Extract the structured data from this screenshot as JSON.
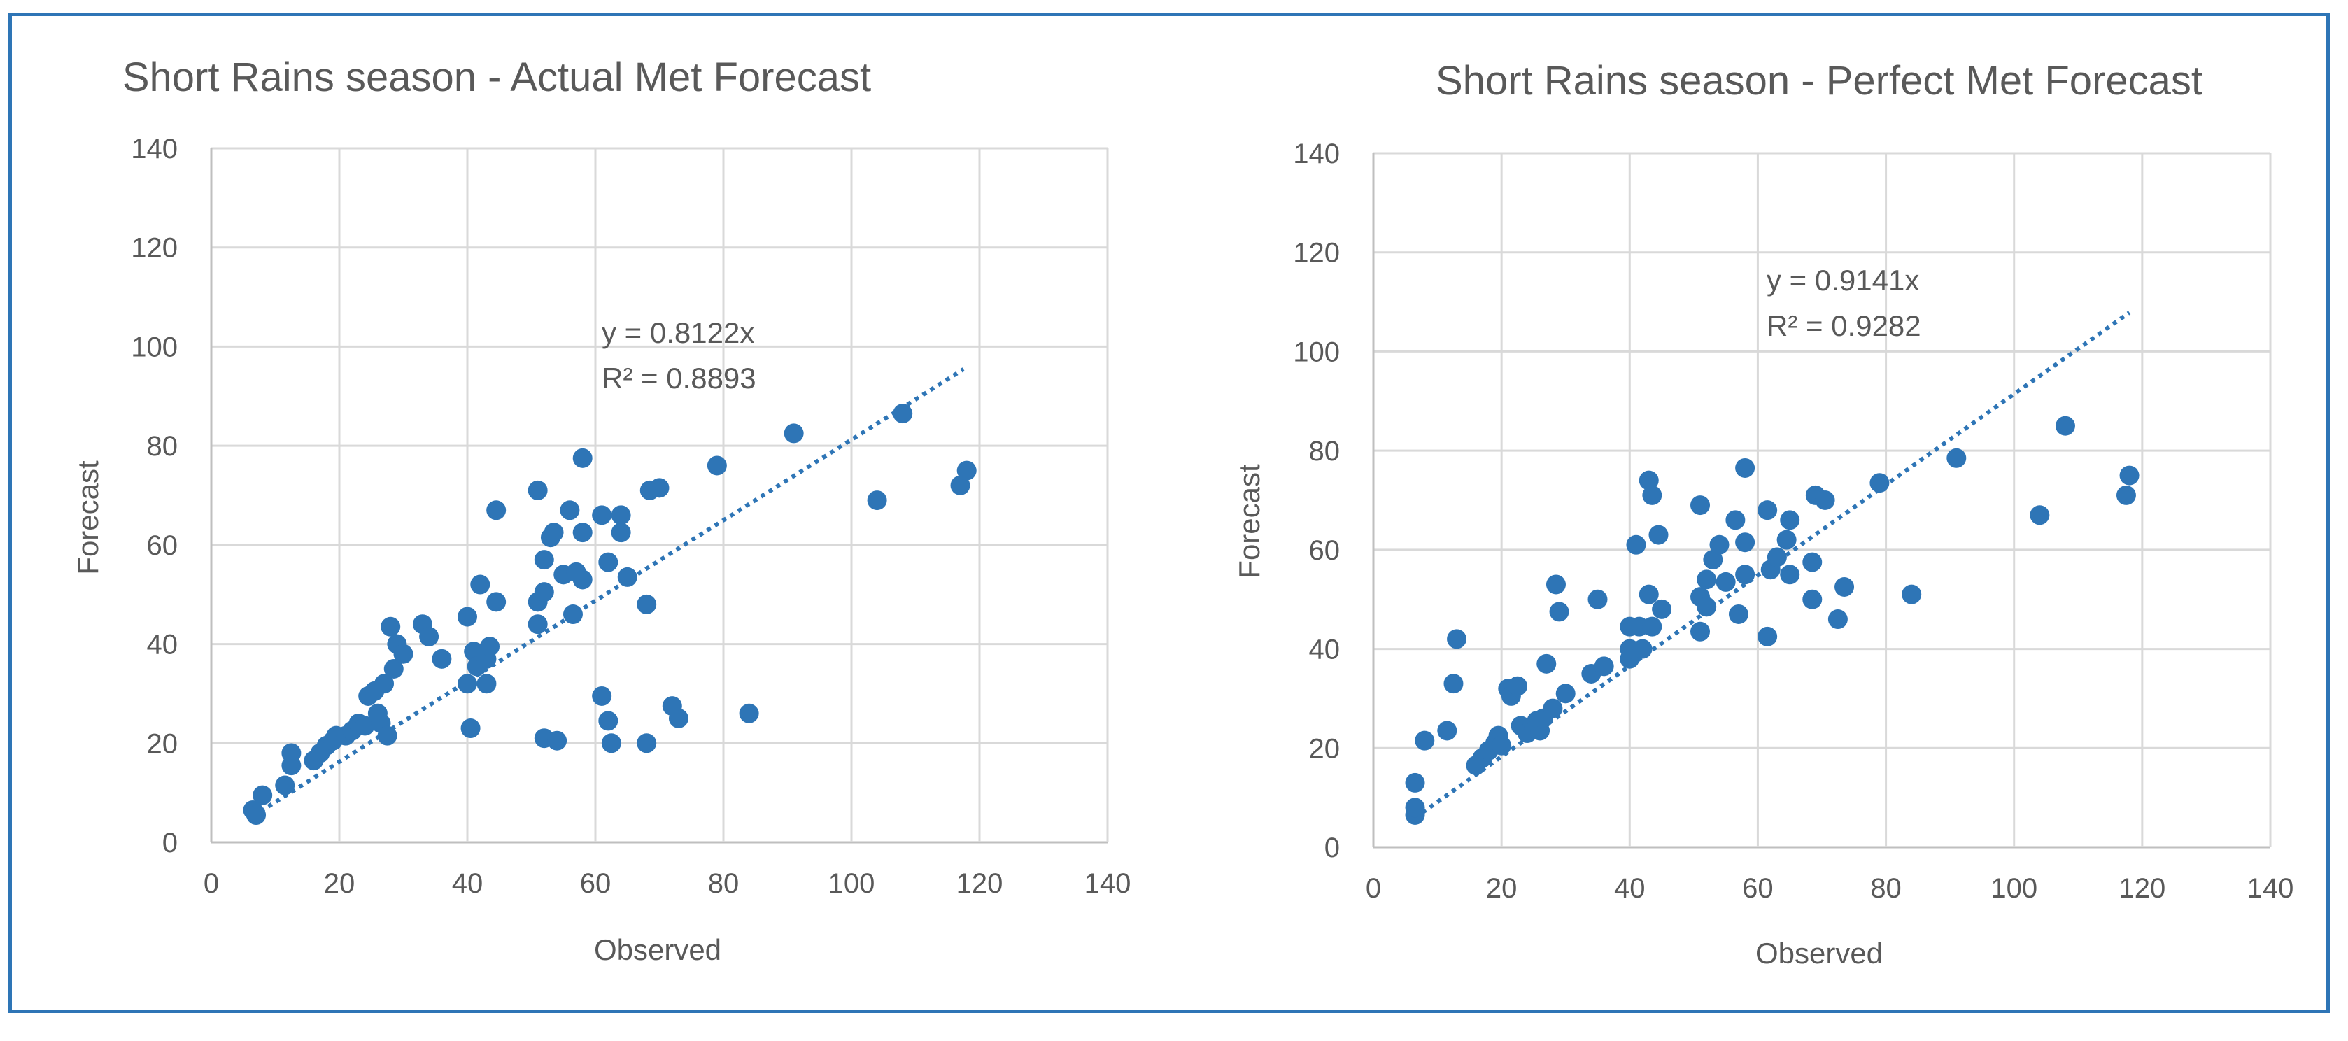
{
  "chart_data": [
    {
      "type": "scatter",
      "title": "Short Rains season - Actual Met Forecast",
      "xlabel": "Observed",
      "ylabel": "Forecast",
      "xlim": [
        0,
        140
      ],
      "ylim": [
        0,
        140
      ],
      "xticks": [
        0,
        20,
        40,
        60,
        80,
        100,
        120,
        140
      ],
      "yticks": [
        0,
        20,
        40,
        60,
        80,
        100,
        120,
        140
      ],
      "trendline": {
        "slope": 0.8122,
        "x_range": [
          6.5,
          117.5
        ],
        "style": "dotted"
      },
      "equation_label": "y = 0.8122x",
      "r2_label": "R² = 0.8893",
      "points": [
        [
          6.5,
          6.5
        ],
        [
          7,
          5.5
        ],
        [
          8,
          9.5
        ],
        [
          11.5,
          11.5
        ],
        [
          12.5,
          15.5
        ],
        [
          12.5,
          18
        ],
        [
          16,
          16.5
        ],
        [
          17,
          18
        ],
        [
          18,
          19.5
        ],
        [
          19,
          20.5
        ],
        [
          19.5,
          21.5
        ],
        [
          21,
          21.5
        ],
        [
          22,
          22.5
        ],
        [
          23,
          24
        ],
        [
          24,
          23.5
        ],
        [
          24.5,
          29.5
        ],
        [
          25.5,
          30.5
        ],
        [
          26.5,
          24
        ],
        [
          26,
          26
        ],
        [
          27,
          32
        ],
        [
          27.5,
          21.5
        ],
        [
          28,
          43.5
        ],
        [
          28.5,
          35
        ],
        [
          29,
          40
        ],
        [
          30,
          38
        ],
        [
          33,
          44
        ],
        [
          34,
          41.5
        ],
        [
          36,
          37
        ],
        [
          40,
          45.5
        ],
        [
          40,
          32
        ],
        [
          41,
          38.5
        ],
        [
          40.5,
          23
        ],
        [
          41.5,
          35.5
        ],
        [
          42,
          52
        ],
        [
          43,
          37
        ],
        [
          43.5,
          39.5
        ],
        [
          43,
          32
        ],
        [
          44.5,
          48.5
        ],
        [
          44.5,
          67
        ],
        [
          51,
          71
        ],
        [
          51,
          44
        ],
        [
          51,
          48.5
        ],
        [
          52,
          57
        ],
        [
          52,
          50.5
        ],
        [
          52,
          21
        ],
        [
          53,
          61.5
        ],
        [
          53.5,
          62.5
        ],
        [
          54,
          20.5
        ],
        [
          55,
          54
        ],
        [
          56,
          67
        ],
        [
          56.5,
          46
        ],
        [
          57,
          54.5
        ],
        [
          58,
          77.5
        ],
        [
          58,
          53
        ],
        [
          58,
          62.5
        ],
        [
          61,
          66
        ],
        [
          61,
          29.5
        ],
        [
          62,
          56.5
        ],
        [
          62,
          24.5
        ],
        [
          62.5,
          20
        ],
        [
          64,
          66
        ],
        [
          64,
          62.5
        ],
        [
          65,
          53.5
        ],
        [
          68,
          48
        ],
        [
          68,
          20
        ],
        [
          68.5,
          71
        ],
        [
          70,
          71.5
        ],
        [
          72,
          27.5
        ],
        [
          73,
          25
        ],
        [
          79,
          76
        ],
        [
          84,
          26
        ],
        [
          91,
          82.5
        ],
        [
          104,
          69
        ],
        [
          108,
          86.5
        ],
        [
          117,
          72
        ],
        [
          118,
          75
        ]
      ]
    },
    {
      "type": "scatter",
      "title": "Short Rains season - Perfect Met Forecast",
      "xlabel": "Observed",
      "ylabel": "Forecast",
      "xlim": [
        0,
        140
      ],
      "ylim": [
        0,
        140
      ],
      "xticks": [
        0,
        20,
        40,
        60,
        80,
        100,
        120,
        140
      ],
      "yticks": [
        0,
        20,
        40,
        60,
        80,
        100,
        120,
        140
      ],
      "trendline": {
        "slope": 0.9141,
        "x_range": [
          6.5,
          118
        ],
        "style": "dotted"
      },
      "equation_label": "y = 0.9141x",
      "r2_label": "R² = 0.9282",
      "points": [
        [
          6.5,
          6.5
        ],
        [
          6.5,
          8
        ],
        [
          6.5,
          13
        ],
        [
          8,
          21.5
        ],
        [
          11.5,
          23.5
        ],
        [
          12.5,
          33
        ],
        [
          13,
          42
        ],
        [
          16,
          16.5
        ],
        [
          17,
          18
        ],
        [
          18,
          19.5
        ],
        [
          19,
          21
        ],
        [
          19.5,
          22.5
        ],
        [
          20,
          20.5
        ],
        [
          21,
          32
        ],
        [
          21.5,
          30.5
        ],
        [
          22.5,
          32.5
        ],
        [
          23,
          24.5
        ],
        [
          24,
          23
        ],
        [
          25,
          24
        ],
        [
          25.5,
          25.5
        ],
        [
          26,
          23.5
        ],
        [
          26.5,
          26
        ],
        [
          27,
          37
        ],
        [
          28,
          28
        ],
        [
          28.5,
          53
        ],
        [
          29,
          47.5
        ],
        [
          30,
          31
        ],
        [
          34,
          35
        ],
        [
          35,
          50
        ],
        [
          36,
          36.5
        ],
        [
          40,
          38
        ],
        [
          40,
          40
        ],
        [
          40,
          44.5
        ],
        [
          41,
          61
        ],
        [
          41.5,
          44.5
        ],
        [
          42,
          40
        ],
        [
          43,
          51
        ],
        [
          43,
          74
        ],
        [
          43.5,
          71
        ],
        [
          43.5,
          44.5
        ],
        [
          44.5,
          63
        ],
        [
          45,
          48
        ],
        [
          51,
          69
        ],
        [
          51,
          50.5
        ],
        [
          51,
          43.5
        ],
        [
          52,
          48.5
        ],
        [
          52,
          54
        ],
        [
          53,
          58
        ],
        [
          54,
          61
        ],
        [
          55,
          53.5
        ],
        [
          56.5,
          66
        ],
        [
          57,
          47
        ],
        [
          58,
          76.5
        ],
        [
          58,
          55
        ],
        [
          58,
          61.5
        ],
        [
          61.5,
          42.5
        ],
        [
          61.5,
          68
        ],
        [
          62,
          56
        ],
        [
          63,
          58.5
        ],
        [
          64.5,
          62
        ],
        [
          65,
          66
        ],
        [
          65,
          55
        ],
        [
          68.5,
          57.5
        ],
        [
          68.5,
          50
        ],
        [
          69,
          71
        ],
        [
          70.5,
          70
        ],
        [
          72.5,
          46
        ],
        [
          73.5,
          52.5
        ],
        [
          79,
          73.5
        ],
        [
          84,
          51
        ],
        [
          91,
          78.5
        ],
        [
          104,
          67
        ],
        [
          108,
          85
        ],
        [
          117.5,
          71
        ],
        [
          118,
          75
        ]
      ]
    }
  ]
}
